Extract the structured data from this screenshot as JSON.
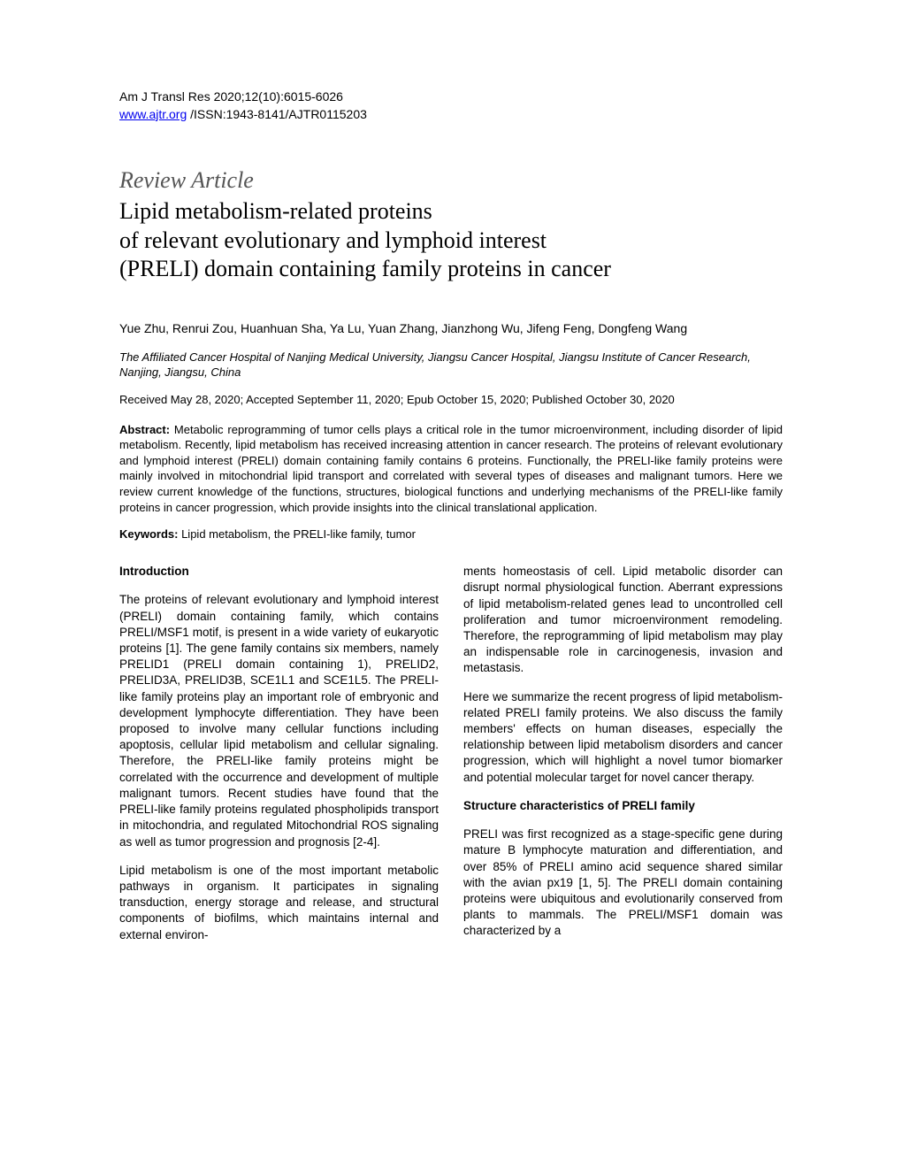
{
  "header": {
    "journal_ref": "Am J Transl Res 2020;12(10):6015-6026",
    "link_text": "www.ajtr.org",
    "issn_line": " /ISSN:1943-8141/AJTR0115203"
  },
  "article": {
    "type": "Review Article",
    "title_line1": "Lipid metabolism-related proteins",
    "title_line2": "of relevant evolutionary and lymphoid interest",
    "title_line3": "(PRELI) domain containing family proteins in cancer",
    "authors": "Yue Zhu, Renrui Zou, Huanhuan Sha, Ya Lu, Yuan Zhang, Jianzhong Wu, Jifeng Feng, Dongfeng Wang",
    "affiliation": "The Affiliated Cancer Hospital of Nanjing Medical University, Jiangsu Cancer Hospital, Jiangsu Institute of Cancer Research, Nanjing, Jiangsu, China",
    "dates": "Received May 28, 2020; Accepted September 11, 2020; Epub October 15, 2020; Published October 30, 2020"
  },
  "abstract": {
    "label": "Abstract:",
    "text": " Metabolic reprogramming of tumor cells plays a critical role in the tumor microenvironment, including disorder of lipid metabolism. Recently, lipid metabolism has received increasing attention in cancer research. The proteins of relevant evolutionary and lymphoid interest (PRELI) domain containing family contains 6 proteins. Functionally, the PRELI-like family proteins were mainly involved in mitochondrial lipid transport and correlated with several types of diseases and malignant tumors. Here we review current knowledge of the functions, structures, biological functions and underlying mechanisms of the PRELI-like family proteins in cancer progression, which provide insights into the clinical translational application."
  },
  "keywords": {
    "label": "Keywords:",
    "text": " Lipid metabolism, the PRELI-like family, tumor"
  },
  "body": {
    "left": {
      "heading1": "Introduction",
      "para1": "The proteins of relevant evolutionary and lymphoid interest (PRELI) domain containing family, which contains PRELI/MSF1 motif, is present in a wide variety of eukaryotic proteins [1]. The gene family contains six members, namely PRELID1 (PRELI domain containing 1), PRELID2, PRELID3A, PRELID3B, SCE1L1 and SCE1L5. The PRELI-like family proteins play an important role of embryonic and development lymphocyte differentiation. They have been proposed to involve many cellular functions including apoptosis, cellular lipid metabolism and cellular signaling. Therefore, the PRELI-like family proteins might be correlated with the occurrence and development of multiple malignant tumors. Recent studies have found that the PRELI-like family proteins regulated phospholipids transport in mitochondria, and regulated Mitochondrial ROS signaling as well as tumor progression and prognosis [2-4].",
      "para2": "Lipid metabolism is one of the most important metabolic pathways in organism. It participates in signaling transduction, energy storage and release, and structural components of biofilms, which maintains internal and external environ-"
    },
    "right": {
      "para1": "ments homeostasis of cell. Lipid metabolic disorder can disrupt normal physiological function. Aberrant expressions of lipid metabolism-related genes lead to uncontrolled cell proliferation and tumor microenvironment remodeling. Therefore, the reprogramming of lipid metabolism may play an indispensable role in carcinogenesis, invasion and metastasis.",
      "para2": "Here we summarize the recent progress of lipid metabolism-related PRELI family proteins. We also discuss the family members' effects on human diseases, especially the relationship between lipid metabolism disorders and cancer progression, which will highlight a novel tumor biomarker and potential molecular target for novel cancer therapy.",
      "heading1": "Structure characteristics of PRELI family",
      "para3": "PRELI was first recognized as a stage-specific gene during mature B lymphocyte maturation and differentiation, and over 85% of PRELI amino acid sequence shared similar with the avian px19 [1, 5]. The PRELI domain containing proteins were ubiquitous and evolutionarily conserved from plants to mammals. The PRELI/MSF1 domain was characterized by a"
    }
  }
}
